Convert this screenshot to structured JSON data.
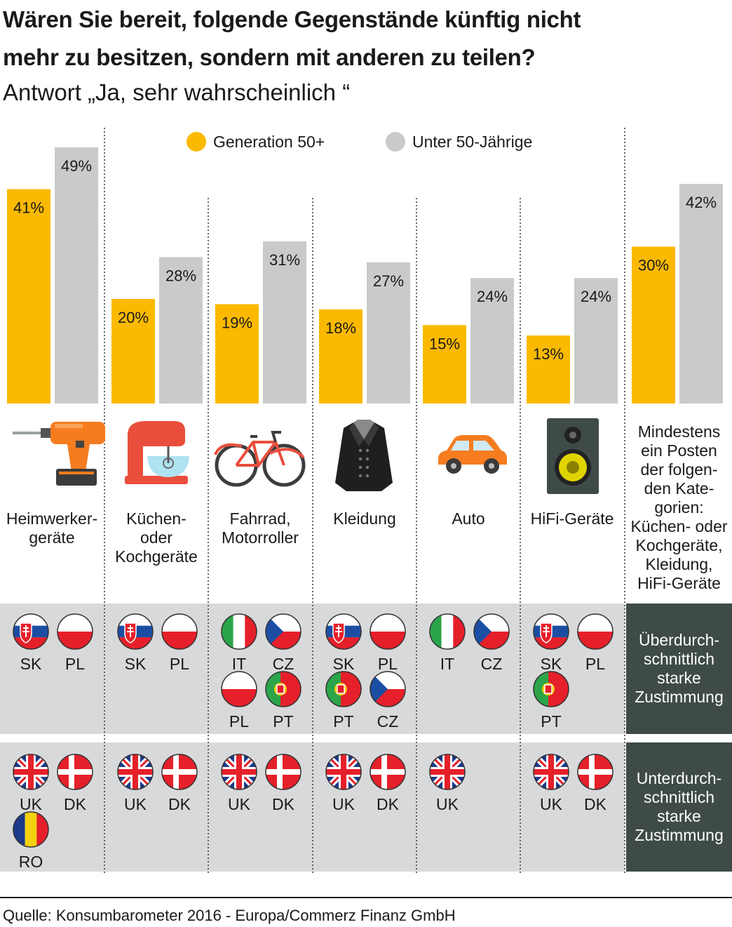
{
  "title": {
    "line1": "Wären Sie bereit, folgende Gegenstände künftig nicht",
    "line2": "mehr zu besitzen, sondern mit anderen zu teilen?",
    "subtitle": "Antwort „Ja, sehr wahrscheinlich “"
  },
  "legend": [
    {
      "name": "Generation 50+",
      "color": "#fbb900"
    },
    {
      "name": "Unter 50-Jährige",
      "color": "#c9cacb"
    }
  ],
  "chart_data": {
    "type": "bar",
    "categories": [
      "Heimwerker-\ngeräte",
      "Küchen-\noder\nKochgeräte",
      "Fahrrad,\nMotorroller",
      "Kleidung",
      "Auto",
      "HiFi-Geräte",
      "Mindestens\nein Posten\nder folgen-\nden Kate-\ngorien:\nKüchen- oder\nKochgeräte,\nKleidung,\nHiFi-Geräte"
    ],
    "series": [
      {
        "name": "Generation 50+",
        "values": [
          41,
          20,
          19,
          18,
          15,
          13,
          30
        ],
        "labels": [
          "41%",
          "20%",
          "19%",
          "18%",
          "15%",
          "13%",
          "30%"
        ]
      },
      {
        "name": "Unter 50-Jährige",
        "values": [
          49,
          28,
          31,
          27,
          24,
          24,
          42
        ],
        "labels": [
          "49%",
          "28%",
          "31%",
          "27%",
          "24%",
          "24%",
          "42%"
        ]
      }
    ],
    "ylim": [
      0,
      49
    ],
    "legend_position": "top",
    "colors": {
      "gen50": "#fbb900",
      "under50": "#c9cacb"
    }
  },
  "icons": [
    "drill-icon",
    "stand-mixer-icon",
    "bicycle-icon",
    "coat-icon",
    "car-icon",
    "speaker-icon"
  ],
  "bands": {
    "above": {
      "label": "Überdurch-\nschnittlich\nstarke\nZustimmung",
      "flags": [
        [
          "SK",
          "PL"
        ],
        [
          "SK",
          "PL"
        ],
        [
          "IT",
          "CZ",
          "PL",
          "PT"
        ],
        [
          "SK",
          "PL",
          "PT",
          "CZ"
        ],
        [
          "IT",
          "CZ"
        ],
        [
          "SK",
          "PL",
          "PT"
        ]
      ]
    },
    "below": {
      "label": "Unterdurch-\nschnittlich\nstarke\nZustimmung",
      "flags": [
        [
          "UK",
          "DK",
          "RO"
        ],
        [
          "UK",
          "DK"
        ],
        [
          "UK",
          "DK"
        ],
        [
          "UK",
          "DK"
        ],
        [
          "UK"
        ],
        [
          "UK",
          "DK"
        ]
      ]
    }
  },
  "source": "Quelle: Konsumbarometer 2016 - Europa/Commerz Finanz GmbH"
}
